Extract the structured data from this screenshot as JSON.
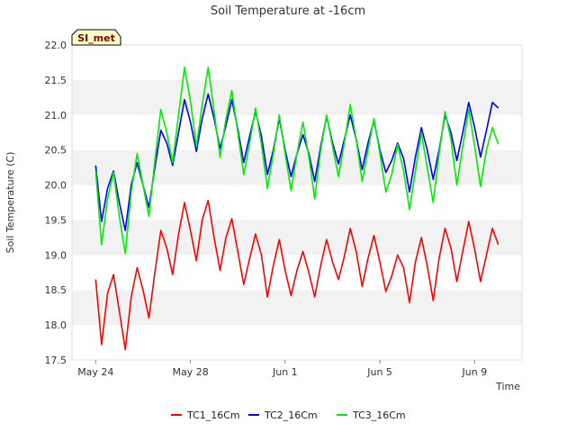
{
  "chart_data": {
    "type": "line",
    "title": "Soil Temperature at -16cm",
    "xlabel": "Time",
    "ylabel": "Soil Temperature (C)",
    "badge": "SI_met",
    "ylim": [
      17.5,
      22.0
    ],
    "yticks": [
      17.5,
      18.0,
      18.5,
      19.0,
      19.5,
      20.0,
      20.5,
      21.0,
      21.5,
      22.0
    ],
    "ytick_labels": [
      "17.5",
      "18.0",
      "18.5",
      "19.0",
      "19.5",
      "20.0",
      "20.5",
      "21.0",
      "21.5",
      "22.0"
    ],
    "xlim": [
      "2016-05-23",
      "2016-06-11"
    ],
    "xticks": [
      "2016-05-24",
      "2016-05-28",
      "2016-06-01",
      "2016-06-05",
      "2016-06-09"
    ],
    "xtick_labels": [
      "May 24",
      "May 28",
      "Jun 1",
      "Jun 5",
      "Jun 9"
    ],
    "grid": "horizontal bands",
    "legend": "bottom-center",
    "colors": {
      "TC1_16Cm": "#ff0000",
      "TC2_16Cm": "#0000ff",
      "TC3_16Cm": "#00ee00",
      "band": "#f2f2f2",
      "badge_bg": "#ffffcc"
    },
    "series": [
      {
        "name": "TC1_16Cm",
        "x": [
          "2016-05-24 00:00",
          "2016-05-24 06:00",
          "2016-05-24 12:00",
          "2016-05-24 18:00",
          "2016-05-25 00:00",
          "2016-05-25 06:00",
          "2016-05-25 12:00",
          "2016-05-25 18:00",
          "2016-05-26 00:00",
          "2016-05-26 06:00",
          "2016-05-26 12:00",
          "2016-05-26 18:00",
          "2016-05-27 00:00",
          "2016-05-27 06:00",
          "2016-05-27 12:00",
          "2016-05-27 18:00",
          "2016-05-28 00:00",
          "2016-05-28 06:00",
          "2016-05-28 12:00",
          "2016-05-28 18:00",
          "2016-05-29 00:00",
          "2016-05-29 06:00",
          "2016-05-29 12:00",
          "2016-05-29 18:00",
          "2016-05-30 00:00",
          "2016-05-30 06:00",
          "2016-05-30 12:00",
          "2016-05-30 18:00",
          "2016-05-31 00:00",
          "2016-05-31 06:00",
          "2016-05-31 12:00",
          "2016-05-31 18:00",
          "2016-06-01 00:00",
          "2016-06-01 06:00",
          "2016-06-01 12:00",
          "2016-06-01 18:00",
          "2016-06-02 00:00",
          "2016-06-02 06:00",
          "2016-06-02 12:00",
          "2016-06-02 18:00",
          "2016-06-03 00:00",
          "2016-06-03 06:00",
          "2016-06-03 12:00",
          "2016-06-03 18:00",
          "2016-06-04 00:00",
          "2016-06-04 06:00",
          "2016-06-04 12:00",
          "2016-06-04 18:00",
          "2016-06-05 00:00",
          "2016-06-05 06:00",
          "2016-06-05 12:00",
          "2016-06-05 18:00",
          "2016-06-06 00:00",
          "2016-06-06 06:00",
          "2016-06-06 12:00",
          "2016-06-06 18:00",
          "2016-06-07 00:00",
          "2016-06-07 06:00",
          "2016-06-07 12:00",
          "2016-06-07 18:00",
          "2016-06-08 00:00",
          "2016-06-08 06:00",
          "2016-06-08 12:00",
          "2016-06-08 18:00",
          "2016-06-09 00:00",
          "2016-06-09 06:00",
          "2016-06-09 12:00",
          "2016-06-09 18:00",
          "2016-06-10 00:00",
          "2016-06-10 06:00"
        ],
        "y": [
          18.65,
          17.72,
          18.45,
          18.72,
          18.2,
          17.65,
          18.4,
          18.82,
          18.5,
          18.1,
          18.75,
          19.35,
          19.1,
          18.72,
          19.3,
          19.75,
          19.35,
          18.92,
          19.5,
          19.78,
          19.25,
          18.78,
          19.25,
          19.52,
          19.05,
          18.58,
          18.95,
          19.3,
          19.0,
          18.4,
          18.85,
          19.22,
          18.78,
          18.42,
          18.78,
          19.05,
          18.75,
          18.4,
          18.85,
          19.22,
          18.9,
          18.65,
          18.98,
          19.38,
          19.05,
          18.55,
          18.95,
          19.28,
          18.9,
          18.48,
          18.7,
          19.0,
          18.82,
          18.32,
          18.9,
          19.25,
          18.85,
          18.35,
          18.95,
          19.38,
          19.1,
          18.62,
          19.05,
          19.48,
          19.08,
          18.62,
          19.0,
          19.38,
          19.15,
          null
        ]
      },
      {
        "name": "TC2_16Cm",
        "x": [
          "2016-05-24 00:00",
          "2016-05-24 06:00",
          "2016-05-24 12:00",
          "2016-05-24 18:00",
          "2016-05-25 00:00",
          "2016-05-25 06:00",
          "2016-05-25 12:00",
          "2016-05-25 18:00",
          "2016-05-26 00:00",
          "2016-05-26 06:00",
          "2016-05-26 12:00",
          "2016-05-26 18:00",
          "2016-05-27 00:00",
          "2016-05-27 06:00",
          "2016-05-27 12:00",
          "2016-05-27 18:00",
          "2016-05-28 00:00",
          "2016-05-28 06:00",
          "2016-05-28 12:00",
          "2016-05-28 18:00",
          "2016-05-29 00:00",
          "2016-05-29 06:00",
          "2016-05-29 12:00",
          "2016-05-29 18:00",
          "2016-05-30 00:00",
          "2016-05-30 06:00",
          "2016-05-30 12:00",
          "2016-05-30 18:00",
          "2016-05-31 00:00",
          "2016-05-31 06:00",
          "2016-05-31 12:00",
          "2016-05-31 18:00",
          "2016-06-01 00:00",
          "2016-06-01 06:00",
          "2016-06-01 12:00",
          "2016-06-01 18:00",
          "2016-06-02 00:00",
          "2016-06-02 06:00",
          "2016-06-02 12:00",
          "2016-06-02 18:00",
          "2016-06-03 00:00",
          "2016-06-03 06:00",
          "2016-06-03 12:00",
          "2016-06-03 18:00",
          "2016-06-04 00:00",
          "2016-06-04 06:00",
          "2016-06-04 12:00",
          "2016-06-04 18:00",
          "2016-06-05 00:00",
          "2016-06-05 06:00",
          "2016-06-05 12:00",
          "2016-06-05 18:00",
          "2016-06-06 00:00",
          "2016-06-06 06:00",
          "2016-06-06 12:00",
          "2016-06-06 18:00",
          "2016-06-07 00:00",
          "2016-06-07 06:00",
          "2016-06-07 12:00",
          "2016-06-07 18:00",
          "2016-06-08 00:00",
          "2016-06-08 06:00",
          "2016-06-08 12:00",
          "2016-06-08 18:00",
          "2016-06-09 00:00",
          "2016-06-09 06:00",
          "2016-06-09 12:00",
          "2016-06-09 18:00",
          "2016-06-10 00:00",
          "2016-06-10 06:00"
        ],
        "y": [
          20.28,
          19.48,
          19.95,
          20.2,
          19.75,
          19.35,
          20.0,
          20.32,
          20.0,
          19.68,
          20.25,
          20.78,
          20.6,
          20.28,
          20.75,
          21.22,
          20.9,
          20.48,
          20.95,
          21.3,
          20.95,
          20.52,
          20.85,
          21.22,
          20.8,
          20.32,
          20.7,
          21.05,
          20.7,
          20.15,
          20.5,
          20.95,
          20.5,
          20.12,
          20.45,
          20.72,
          20.45,
          20.05,
          20.55,
          20.98,
          20.6,
          20.3,
          20.65,
          21.0,
          20.65,
          20.22,
          20.6,
          20.92,
          20.5,
          20.18,
          20.35,
          20.6,
          20.38,
          19.9,
          20.4,
          20.82,
          20.5,
          20.08,
          20.5,
          21.0,
          20.75,
          20.35,
          20.75,
          21.18,
          20.82,
          20.4,
          20.78,
          21.18,
          21.1,
          null
        ]
      },
      {
        "name": "TC3_16Cm",
        "x": [
          "2016-05-24 00:00",
          "2016-05-24 06:00",
          "2016-05-24 12:00",
          "2016-05-24 18:00",
          "2016-05-25 00:00",
          "2016-05-25 06:00",
          "2016-05-25 12:00",
          "2016-05-25 18:00",
          "2016-05-26 00:00",
          "2016-05-26 06:00",
          "2016-05-26 12:00",
          "2016-05-26 18:00",
          "2016-05-27 00:00",
          "2016-05-27 06:00",
          "2016-05-27 12:00",
          "2016-05-27 18:00",
          "2016-05-28 00:00",
          "2016-05-28 06:00",
          "2016-05-28 12:00",
          "2016-05-28 18:00",
          "2016-05-29 00:00",
          "2016-05-29 06:00",
          "2016-05-29 12:00",
          "2016-05-29 18:00",
          "2016-05-30 00:00",
          "2016-05-30 06:00",
          "2016-05-30 12:00",
          "2016-05-30 18:00",
          "2016-05-31 00:00",
          "2016-05-31 06:00",
          "2016-05-31 12:00",
          "2016-05-31 18:00",
          "2016-06-01 00:00",
          "2016-06-01 06:00",
          "2016-06-01 12:00",
          "2016-06-01 18:00",
          "2016-06-02 00:00",
          "2016-06-02 06:00",
          "2016-06-02 12:00",
          "2016-06-02 18:00",
          "2016-06-03 00:00",
          "2016-06-03 06:00",
          "2016-06-03 12:00",
          "2016-06-03 18:00",
          "2016-06-04 00:00",
          "2016-06-04 06:00",
          "2016-06-04 12:00",
          "2016-06-04 18:00",
          "2016-06-05 00:00",
          "2016-06-05 06:00",
          "2016-06-05 12:00",
          "2016-06-05 18:00",
          "2016-06-06 00:00",
          "2016-06-06 06:00",
          "2016-06-06 12:00",
          "2016-06-06 18:00",
          "2016-06-07 00:00",
          "2016-06-07 06:00",
          "2016-06-07 12:00",
          "2016-06-07 18:00",
          "2016-06-08 00:00",
          "2016-06-08 06:00",
          "2016-06-08 12:00",
          "2016-06-08 18:00",
          "2016-06-09 00:00",
          "2016-06-09 06:00",
          "2016-06-09 12:00",
          "2016-06-09 18:00",
          "2016-06-10 00:00",
          "2016-06-10 06:00"
        ],
        "y": [
          20.2,
          19.15,
          19.8,
          20.18,
          19.55,
          19.02,
          19.9,
          20.45,
          20.0,
          19.55,
          20.35,
          21.08,
          20.75,
          20.32,
          21.0,
          21.68,
          21.2,
          20.55,
          21.15,
          21.68,
          21.05,
          20.4,
          20.95,
          21.35,
          20.75,
          20.15,
          20.6,
          21.1,
          20.58,
          19.95,
          20.45,
          21.0,
          20.45,
          19.92,
          20.45,
          20.9,
          20.4,
          19.8,
          20.5,
          21.0,
          20.55,
          20.12,
          20.6,
          21.15,
          20.65,
          20.05,
          20.5,
          20.95,
          20.45,
          19.9,
          20.15,
          20.58,
          20.2,
          19.65,
          20.2,
          20.75,
          20.25,
          19.75,
          20.45,
          21.05,
          20.65,
          20.0,
          20.55,
          21.08,
          20.55,
          19.98,
          20.5,
          20.82,
          20.58,
          null
        ]
      }
    ]
  }
}
